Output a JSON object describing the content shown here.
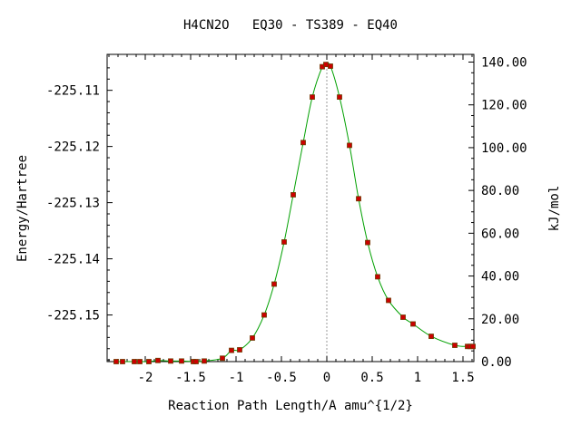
{
  "chart_data": {
    "type": "line",
    "title": "H4CN2O   EQ30 - TS389 - EQ40",
    "xlabel": "Reaction Path Length/A amu^{1/2}",
    "ylabel": "Energy/Hartree",
    "y2label": "kJ/mol",
    "xlim": [
      -2.42,
      1.62
    ],
    "ylim": [
      -225.1583,
      -225.1036
    ],
    "y2lim": [
      0.0,
      143.6
    ],
    "x_ticks": [
      -2,
      -1.5,
      -1,
      -0.5,
      0,
      0.5,
      1,
      1.5
    ],
    "x_tick_labels": [
      "-2",
      "-1.5",
      "-1",
      "-0.5",
      "0",
      "0.5",
      "1",
      "1.5"
    ],
    "y_ticks": [
      -225.11,
      -225.12,
      -225.13,
      -225.14,
      -225.15
    ],
    "y_tick_labels": [
      "-225.11",
      "-225.12",
      "-225.13",
      "-225.14",
      "-225.15"
    ],
    "y2_ticks": [
      0,
      20,
      40,
      60,
      80,
      100,
      120,
      140
    ],
    "y2_tick_labels": [
      "0.00",
      "20.00",
      "40.00",
      "60.00",
      "80.00",
      "100.00",
      "120.00",
      "140.00"
    ],
    "ts_marker_x": 0.0,
    "grid": false,
    "colors": {
      "curve": "#00a000",
      "points": "#cc0000",
      "point_edge": "#6b3a00",
      "ts_line": "#999999"
    },
    "series": [
      {
        "points": [
          [
            -2.32,
            -225.1583
          ],
          [
            -2.25,
            -225.1583
          ],
          [
            -2.12,
            -225.1583
          ],
          [
            -2.06,
            -225.1583
          ],
          [
            -1.96,
            -225.1583
          ],
          [
            -1.86,
            -225.1581
          ],
          [
            -1.72,
            -225.1582
          ],
          [
            -1.6,
            -225.1582
          ],
          [
            -1.47,
            -225.1583
          ],
          [
            -1.44,
            -225.1583
          ],
          [
            -1.35,
            -225.1582
          ],
          [
            -1.15,
            -225.1577
          ],
          [
            -1.05,
            -225.1563
          ],
          [
            -0.96,
            -225.1562
          ],
          [
            -0.82,
            -225.1541
          ],
          [
            -0.69,
            -225.15
          ],
          [
            -0.58,
            -225.1445
          ],
          [
            -0.47,
            -225.137
          ],
          [
            -0.37,
            -225.1286
          ],
          [
            -0.26,
            -225.1193
          ],
          [
            -0.16,
            -225.1112
          ],
          [
            -0.05,
            -225.1058
          ],
          [
            -0.01,
            -225.1054
          ],
          [
            0.04,
            -225.1057
          ],
          [
            0.14,
            -225.1112
          ],
          [
            0.25,
            -225.1198
          ],
          [
            0.35,
            -225.1293
          ],
          [
            0.45,
            -225.1371
          ],
          [
            0.56,
            -225.1432
          ],
          [
            0.68,
            -225.1474
          ],
          [
            0.84,
            -225.1504
          ],
          [
            0.95,
            -225.1516
          ],
          [
            1.15,
            -225.1538
          ],
          [
            1.41,
            -225.1554
          ],
          [
            1.55,
            -225.1556
          ],
          [
            1.58,
            -225.1556
          ],
          [
            1.61,
            -225.1556
          ]
        ]
      }
    ]
  }
}
